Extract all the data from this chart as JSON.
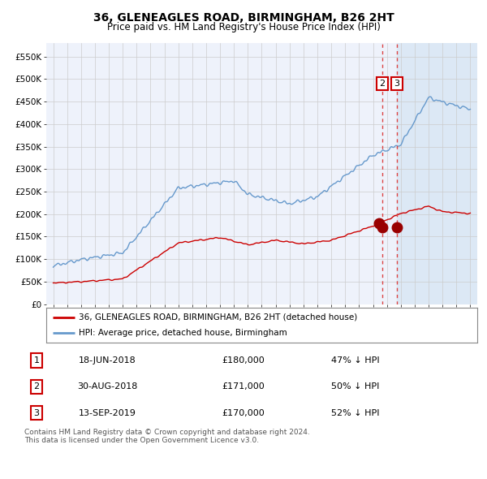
{
  "title": "36, GLENEAGLES ROAD, BIRMINGHAM, B26 2HT",
  "subtitle": "Price paid vs. HM Land Registry's House Price Index (HPI)",
  "background_color": "#ffffff",
  "plot_bg_color": "#eef2fb",
  "shaded_region_color": "#dce8f5",
  "grid_color": "#cccccc",
  "red_line_color": "#cc0000",
  "blue_line_color": "#6699cc",
  "marker_color": "#990000",
  "vline_color": "#dd4444",
  "box_color": "#cc0000",
  "legend_label_red": "36, GLENEAGLES ROAD, BIRMINGHAM, B26 2HT (detached house)",
  "legend_label_blue": "HPI: Average price, detached house, Birmingham",
  "transactions": [
    {
      "date": 2018.46,
      "price": 180000,
      "label": "1"
    },
    {
      "date": 2018.66,
      "price": 171000,
      "label": "2"
    },
    {
      "date": 2019.71,
      "price": 170000,
      "label": "3"
    }
  ],
  "table_rows": [
    {
      "num": "1",
      "date": "18-JUN-2018",
      "price": "£180,000",
      "hpi": "47% ↓ HPI"
    },
    {
      "num": "2",
      "date": "30-AUG-2018",
      "price": "£171,000",
      "hpi": "50% ↓ HPI"
    },
    {
      "num": "3",
      "date": "13-SEP-2019",
      "price": "£170,000",
      "hpi": "52% ↓ HPI"
    }
  ],
  "vline_dates": [
    2018.66,
    2019.71
  ],
  "shaded_start": 2019.71,
  "footnote": "Contains HM Land Registry data © Crown copyright and database right 2024.\nThis data is licensed under the Open Government Licence v3.0.",
  "ylim": [
    0,
    580000
  ],
  "yticks": [
    0,
    50000,
    100000,
    150000,
    200000,
    250000,
    300000,
    350000,
    400000,
    450000,
    500000,
    550000
  ],
  "ytick_labels": [
    "£0",
    "£50K",
    "£100K",
    "£150K",
    "£200K",
    "£250K",
    "£300K",
    "£350K",
    "£400K",
    "£450K",
    "£500K",
    "£550K"
  ],
  "xmin": 1994.5,
  "xmax": 2025.5
}
